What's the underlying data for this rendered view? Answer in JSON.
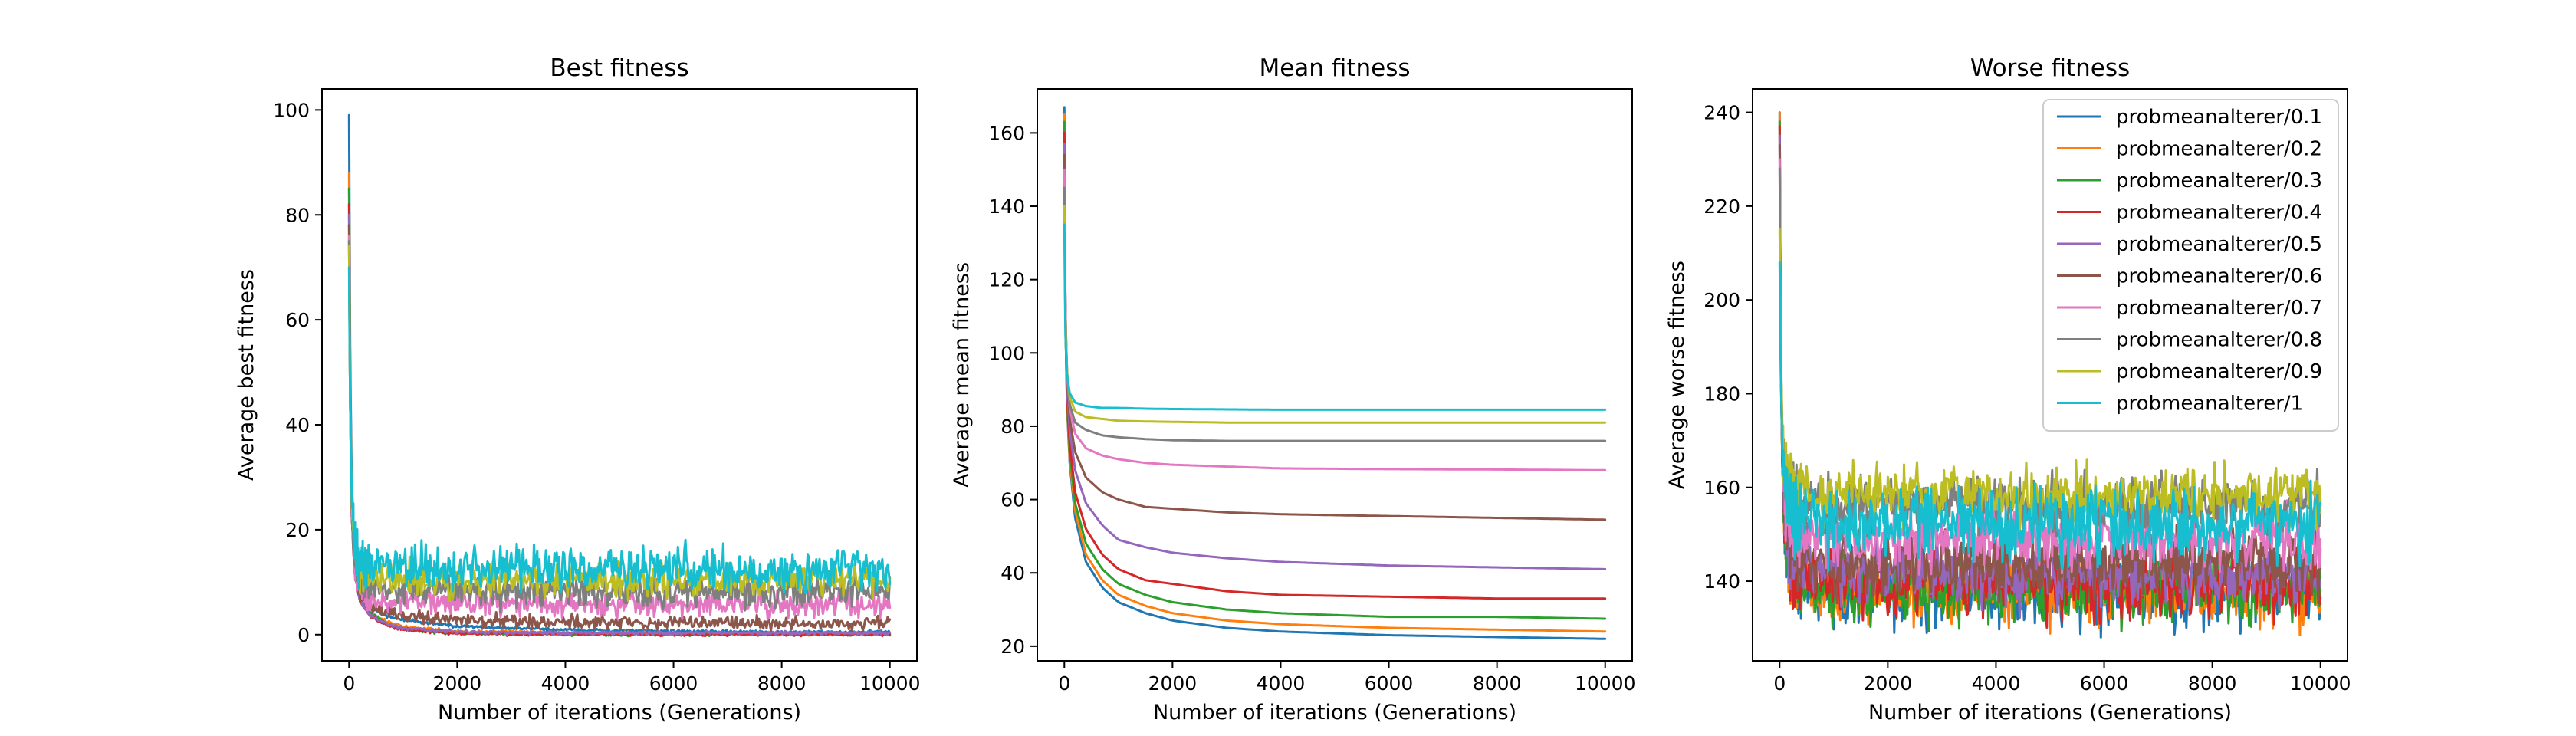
{
  "colors": [
    "#1f77b4",
    "#ff7f0e",
    "#2ca02c",
    "#d62728",
    "#9467bd",
    "#8c564b",
    "#e377c2",
    "#7f7f7f",
    "#bcbd22",
    "#17becf"
  ],
  "legend": {
    "placement": "top-right",
    "panel": 2,
    "entries": [
      "probmeanalterer/0.1",
      "probmeanalterer/0.2",
      "probmeanalterer/0.3",
      "probmeanalterer/0.4",
      "probmeanalterer/0.5",
      "probmeanalterer/0.6",
      "probmeanalterer/0.7",
      "probmeanalterer/0.8",
      "probmeanalterer/0.9",
      "probmeanalterer/1"
    ]
  },
  "chart_data": [
    {
      "type": "line",
      "title": "Best fitness",
      "xlabel": "Number of iterations (Generations)",
      "ylabel": "Average best fitness",
      "xlim": [
        -500,
        10500
      ],
      "ylim": [
        -5,
        104
      ],
      "xticks": [
        0,
        2000,
        4000,
        6000,
        8000,
        10000
      ],
      "yticks": [
        0,
        20,
        40,
        60,
        80,
        100
      ],
      "grid": false,
      "noise": "low",
      "series": [
        {
          "name": "probmeanalterer/0.1",
          "x": [
            0,
            20,
            50,
            100,
            200,
            400,
            700,
            1000,
            2000,
            4000,
            6000,
            8000,
            10000
          ],
          "y": [
            99,
            55,
            28,
            14,
            8,
            5,
            3.5,
            2.8,
            1.6,
            0.9,
            0.6,
            0.5,
            0.5
          ],
          "noise": 0.15
        },
        {
          "name": "probmeanalterer/0.2",
          "x": [
            0,
            20,
            50,
            100,
            200,
            400,
            700,
            1000,
            2000,
            4000,
            6000,
            8000,
            10000
          ],
          "y": [
            88,
            50,
            25,
            13,
            7,
            4,
            2.5,
            1.5,
            0.6,
            0.3,
            0.2,
            0.2,
            0.2
          ],
          "noise": 0.15
        },
        {
          "name": "probmeanalterer/0.3",
          "x": [
            0,
            20,
            50,
            100,
            200,
            400,
            700,
            1000,
            2000,
            4000,
            6000,
            8000,
            10000
          ],
          "y": [
            85,
            48,
            24,
            12,
            6.5,
            4,
            2,
            1,
            0.3,
            0.1,
            0.1,
            0.1,
            0.1
          ],
          "noise": 0.15
        },
        {
          "name": "probmeanalterer/0.4",
          "x": [
            0,
            20,
            50,
            100,
            200,
            400,
            700,
            1000,
            2000,
            4000,
            6000,
            8000,
            10000
          ],
          "y": [
            82,
            47,
            23,
            12,
            6.5,
            3.5,
            1.8,
            1,
            0.2,
            0.1,
            0.1,
            0.1,
            0.1
          ],
          "noise": 0.15
        },
        {
          "name": "probmeanalterer/0.5",
          "x": [
            0,
            20,
            50,
            100,
            200,
            400,
            700,
            1000,
            2000,
            4000,
            6000,
            8000,
            10000
          ],
          "y": [
            80,
            46,
            23,
            12,
            6.5,
            3.5,
            2,
            1.2,
            0.5,
            0.3,
            0.3,
            0.3,
            0.3
          ],
          "noise": 0.15
        },
        {
          "name": "probmeanalterer/0.6",
          "x": [
            0,
            20,
            50,
            100,
            200,
            400,
            700,
            1000,
            2000,
            4000,
            6000,
            8000,
            10000
          ],
          "y": [
            78,
            45,
            23,
            13,
            8,
            5.5,
            4,
            3.5,
            2.8,
            2.4,
            2.3,
            2.2,
            2.2
          ],
          "noise": 0.6
        },
        {
          "name": "probmeanalterer/0.7",
          "x": [
            0,
            20,
            50,
            100,
            200,
            400,
            700,
            1000,
            2000,
            4000,
            6000,
            8000,
            10000
          ],
          "y": [
            76,
            45,
            24,
            14,
            9,
            7,
            6.5,
            6.3,
            6,
            5.8,
            5.8,
            5.7,
            5.7
          ],
          "noise": 1.2
        },
        {
          "name": "probmeanalterer/0.8",
          "x": [
            0,
            20,
            50,
            100,
            200,
            400,
            700,
            1000,
            2000,
            4000,
            6000,
            8000,
            10000
          ],
          "y": [
            75,
            45,
            25,
            15,
            10.5,
            9,
            8.5,
            8.5,
            8.3,
            8.2,
            8.2,
            8.2,
            8.2
          ],
          "noise": 1.5
        },
        {
          "name": "probmeanalterer/0.9",
          "x": [
            0,
            20,
            50,
            100,
            200,
            400,
            700,
            1000,
            2000,
            4000,
            6000,
            8000,
            10000
          ],
          "y": [
            74,
            45,
            25,
            16,
            12,
            11,
            10.7,
            10.5,
            10.4,
            10.3,
            10.3,
            10.3,
            10.3
          ],
          "noise": 1.6
        },
        {
          "name": "probmeanalterer/1",
          "x": [
            0,
            20,
            50,
            100,
            200,
            400,
            700,
            1000,
            2000,
            4000,
            6000,
            8000,
            10000
          ],
          "y": [
            70,
            45,
            26,
            17,
            13.5,
            13,
            12.8,
            12.7,
            12.6,
            12.5,
            12.5,
            12.5,
            12.5
          ],
          "noise": 2.0
        }
      ]
    },
    {
      "type": "line",
      "title": "Mean fitness",
      "xlabel": "Number of iterations (Generations)",
      "ylabel": "Average mean fitness",
      "xlim": [
        -500,
        10500
      ],
      "ylim": [
        16,
        172
      ],
      "xticks": [
        0,
        2000,
        4000,
        6000,
        8000,
        10000
      ],
      "yticks": [
        20,
        40,
        60,
        80,
        100,
        120,
        140,
        160
      ],
      "grid": false,
      "series": [
        {
          "name": "probmeanalterer/0.1",
          "x": [
            0,
            20,
            50,
            100,
            200,
            400,
            700,
            1000,
            1500,
            2000,
            3000,
            4000,
            6000,
            8000,
            10000
          ],
          "y": [
            167,
            110,
            85,
            70,
            55,
            43,
            36,
            32,
            29,
            27,
            25,
            24,
            23,
            22.5,
            22
          ],
          "noise": 0
        },
        {
          "name": "probmeanalterer/0.2",
          "x": [
            0,
            20,
            50,
            100,
            200,
            400,
            700,
            1000,
            1500,
            2000,
            3000,
            4000,
            6000,
            8000,
            10000
          ],
          "y": [
            165,
            110,
            86,
            71,
            57,
            45,
            38,
            34,
            31,
            29,
            27,
            26,
            25,
            24.5,
            24
          ],
          "noise": 0
        },
        {
          "name": "probmeanalterer/0.3",
          "x": [
            0,
            20,
            50,
            100,
            200,
            400,
            700,
            1000,
            1500,
            2000,
            3000,
            4000,
            6000,
            8000,
            10000
          ],
          "y": [
            163,
            110,
            87,
            73,
            59,
            48,
            41,
            37,
            34,
            32,
            30,
            29,
            28,
            28,
            27.5
          ],
          "noise": 0
        },
        {
          "name": "probmeanalterer/0.4",
          "x": [
            0,
            20,
            50,
            100,
            200,
            400,
            700,
            1000,
            1500,
            2000,
            3000,
            4000,
            6000,
            8000,
            10000
          ],
          "y": [
            160,
            110,
            88,
            75,
            62,
            52,
            45,
            41,
            38,
            37,
            35,
            34,
            33.5,
            33,
            33
          ],
          "noise": 0
        },
        {
          "name": "probmeanalterer/0.5",
          "x": [
            0,
            20,
            50,
            100,
            200,
            400,
            700,
            1000,
            1500,
            2000,
            3000,
            4000,
            6000,
            8000,
            10000
          ],
          "y": [
            157,
            112,
            90,
            79,
            68,
            59,
            53,
            49,
            47,
            45.5,
            44,
            43,
            42,
            41.5,
            41
          ],
          "noise": 0
        },
        {
          "name": "probmeanalterer/0.6",
          "x": [
            0,
            20,
            50,
            100,
            200,
            400,
            700,
            1000,
            1500,
            2000,
            3000,
            4000,
            6000,
            8000,
            10000
          ],
          "y": [
            154,
            112,
            92,
            82,
            73,
            66,
            62,
            60,
            58,
            57.5,
            56.5,
            56,
            55.5,
            55,
            54.5
          ],
          "noise": 0
        },
        {
          "name": "probmeanalterer/0.7",
          "x": [
            0,
            20,
            50,
            100,
            200,
            400,
            700,
            1000,
            1500,
            2000,
            3000,
            4000,
            6000,
            8000,
            10000
          ],
          "y": [
            150,
            112,
            94,
            85,
            78,
            74,
            72,
            71,
            70,
            69.5,
            69,
            68.5,
            68.3,
            68.2,
            68
          ],
          "noise": 0
        },
        {
          "name": "probmeanalterer/0.8",
          "x": [
            0,
            20,
            50,
            100,
            200,
            400,
            700,
            1000,
            1500,
            2000,
            3000,
            4000,
            6000,
            8000,
            10000
          ],
          "y": [
            145,
            110,
            95,
            86,
            81,
            79,
            77.5,
            77,
            76.5,
            76.2,
            76,
            76,
            76,
            76,
            76
          ],
          "noise": 0
        },
        {
          "name": "probmeanalterer/0.9",
          "x": [
            0,
            20,
            50,
            100,
            200,
            400,
            700,
            1000,
            1500,
            2000,
            3000,
            4000,
            6000,
            8000,
            10000
          ],
          "y": [
            140,
            108,
            95,
            88,
            84,
            82.5,
            82,
            81.5,
            81.3,
            81.2,
            81,
            81,
            81,
            81,
            81
          ],
          "noise": 0
        },
        {
          "name": "probmeanalterer/1",
          "x": [
            0,
            20,
            50,
            100,
            200,
            400,
            700,
            1000,
            1500,
            2000,
            3000,
            4000,
            6000,
            8000,
            10000
          ],
          "y": [
            135,
            105,
            94,
            89,
            86.5,
            85.5,
            85,
            85,
            84.8,
            84.7,
            84.6,
            84.5,
            84.5,
            84.5,
            84.5
          ],
          "noise": 0
        }
      ]
    },
    {
      "type": "line",
      "title": "Worse fitness",
      "xlabel": "Number of iterations (Generations)",
      "ylabel": "Average worse fitness",
      "xlim": [
        -500,
        10500
      ],
      "ylim": [
        123,
        245
      ],
      "xticks": [
        0,
        2000,
        4000,
        6000,
        8000,
        10000
      ],
      "yticks": [
        140,
        160,
        180,
        200,
        220,
        240
      ],
      "grid": false,
      "series": [
        {
          "name": "probmeanalterer/0.1",
          "x": [
            0,
            20,
            50,
            100,
            200,
            400,
            1000,
            10000
          ],
          "y": [
            240,
            190,
            165,
            150,
            143,
            140,
            138,
            137
          ],
          "noise": 3.5
        },
        {
          "name": "probmeanalterer/0.2",
          "x": [
            0,
            20,
            50,
            100,
            200,
            400,
            1000,
            10000
          ],
          "y": [
            240,
            190,
            165,
            150,
            143,
            140,
            138,
            137.5
          ],
          "noise": 3.5
        },
        {
          "name": "probmeanalterer/0.3",
          "x": [
            0,
            20,
            50,
            100,
            200,
            400,
            1000,
            10000
          ],
          "y": [
            238,
            190,
            165,
            150,
            143,
            140,
            138.5,
            138
          ],
          "noise": 3.5
        },
        {
          "name": "probmeanalterer/0.4",
          "x": [
            0,
            20,
            50,
            100,
            200,
            400,
            1000,
            10000
          ],
          "y": [
            237,
            190,
            165,
            151,
            144,
            141,
            139.5,
            139
          ],
          "noise": 3.5
        },
        {
          "name": "probmeanalterer/0.5",
          "x": [
            0,
            20,
            50,
            100,
            200,
            400,
            1000,
            10000
          ],
          "y": [
            235,
            190,
            166,
            152,
            146,
            143,
            142,
            141.5
          ],
          "noise": 3.5
        },
        {
          "name": "probmeanalterer/0.6",
          "x": [
            0,
            20,
            50,
            100,
            200,
            400,
            1000,
            10000
          ],
          "y": [
            233,
            190,
            167,
            154,
            148,
            145.5,
            144.5,
            144
          ],
          "noise": 3.5
        },
        {
          "name": "probmeanalterer/0.7",
          "x": [
            0,
            20,
            50,
            100,
            200,
            400,
            1000,
            10000
          ],
          "y": [
            230,
            190,
            168,
            157,
            152,
            150,
            149.5,
            149
          ],
          "noise": 3.2
        },
        {
          "name": "probmeanalterer/0.8",
          "x": [
            0,
            20,
            50,
            100,
            200,
            400,
            1000,
            10000
          ],
          "y": [
            228,
            192,
            172,
            162,
            158,
            157,
            156.5,
            156.5
          ],
          "noise": 3.0
        },
        {
          "name": "probmeanalterer/0.9",
          "x": [
            0,
            20,
            50,
            100,
            200,
            400,
            1000,
            10000
          ],
          "y": [
            215,
            190,
            172,
            164,
            160,
            159,
            158.5,
            158.5
          ],
          "noise": 3.0
        },
        {
          "name": "probmeanalterer/1",
          "x": [
            0,
            20,
            50,
            100,
            200,
            400,
            1000,
            10000
          ],
          "y": [
            208,
            185,
            168,
            160,
            155,
            153,
            152.5,
            152.5
          ],
          "noise": 4.0
        }
      ]
    }
  ]
}
